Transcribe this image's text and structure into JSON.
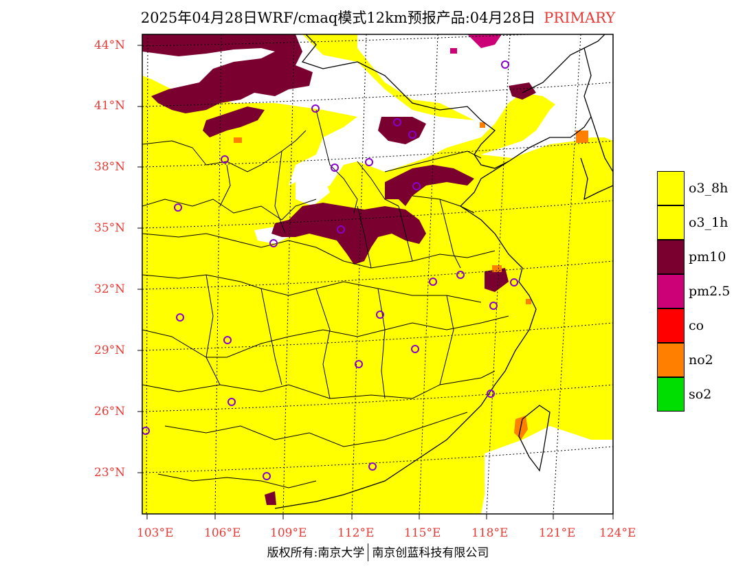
{
  "title": {
    "main": "2025年04月28日WRF/cmaq模式12km预报产品:04月28日",
    "tag": "PRIMARY"
  },
  "axes": {
    "lat_labels": [
      "44°N",
      "41°N",
      "38°N",
      "35°N",
      "32°N",
      "29°N",
      "26°N",
      "23°N"
    ],
    "lon_labels": [
      "103°E",
      "106°E",
      "109°E",
      "112°E",
      "115°E",
      "118°E",
      "121°E",
      "124°E"
    ]
  },
  "legend": {
    "items": [
      {
        "label": "o3_8h",
        "color": "#ffff00"
      },
      {
        "label": "o3_1h",
        "color": "#ffff00"
      },
      {
        "label": "pm10",
        "color": "#7a0030"
      },
      {
        "label": "pm2.5",
        "color": "#cc0077"
      },
      {
        "label": "co",
        "color": "#ff0000"
      },
      {
        "label": "no2",
        "color": "#ff7f00"
      },
      {
        "label": "so2",
        "color": "#00dd00"
      }
    ]
  },
  "copyright": {
    "left": "版权所有:南京大学",
    "right": "南京创蓝科技有限公司"
  },
  "colors": {
    "o3": "#ffff00",
    "pm10": "#7a0030",
    "pm25": "#cc0077",
    "no2": "#ff7f00",
    "station": "#8800cc",
    "label": "#e53935"
  }
}
